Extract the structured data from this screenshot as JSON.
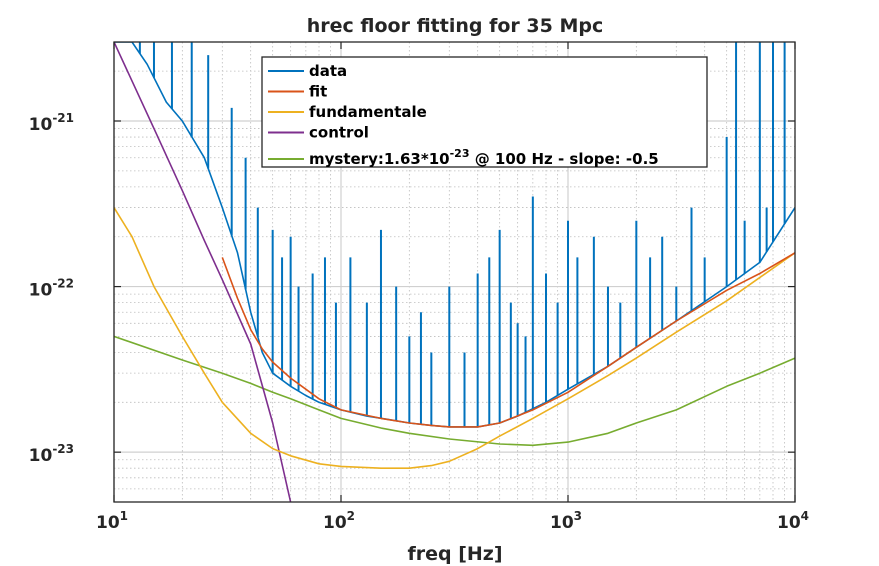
{
  "chart_data": {
    "type": "line",
    "title": "hrec floor fitting for 35 Mpc",
    "xlabel": "freq [Hz]",
    "ylabel": "",
    "x_scale": "log",
    "y_scale": "log",
    "xlim": [
      10,
      10000
    ],
    "ylim": [
      5e-24,
      3e-21
    ],
    "grid": "major and minor on",
    "legend_position": "top-center",
    "x_ticks": [
      {
        "base": "10",
        "exp": "1",
        "value": 10
      },
      {
        "base": "10",
        "exp": "2",
        "value": 100
      },
      {
        "base": "10",
        "exp": "3",
        "value": 1000
      },
      {
        "base": "10",
        "exp": "4",
        "value": 10000
      }
    ],
    "y_ticks": [
      {
        "base": "10",
        "exp": "-23",
        "value": 1e-23
      },
      {
        "base": "10",
        "exp": "-22",
        "value": 1e-22
      },
      {
        "base": "10",
        "exp": "-21",
        "value": 1e-21
      }
    ],
    "series": [
      {
        "name": "data",
        "color": "#0072BD",
        "x": [
          10,
          12,
          14,
          17,
          20,
          25,
          30,
          35,
          40,
          45,
          50,
          60,
          70,
          80,
          100,
          130,
          160,
          200,
          250,
          300,
          400,
          500,
          600,
          800,
          1000,
          1500,
          2000,
          3000,
          5000,
          7000,
          10000
        ],
        "y": [
          3e-21,
          3e-21,
          2.2e-21,
          1.3e-21,
          1e-21,
          6e-22,
          3e-22,
          1.6e-22,
          7e-23,
          4e-23,
          3e-23,
          2.5e-23,
          2.2e-23,
          2e-23,
          1.8e-23,
          1.65e-23,
          1.58e-23,
          1.5e-23,
          1.45e-23,
          1.42e-23,
          1.42e-23,
          1.5e-23,
          1.65e-23,
          2e-23,
          2.4e-23,
          3.3e-23,
          4.3e-23,
          6.2e-23,
          1e-22,
          1.4e-22,
          3e-22
        ],
        "spikes": [
          {
            "x": 13,
            "y": 3e-21
          },
          {
            "x": 15,
            "y": 3e-21
          },
          {
            "x": 18,
            "y": 3e-21
          },
          {
            "x": 22,
            "y": 3e-21
          },
          {
            "x": 26,
            "y": 2.5e-21
          },
          {
            "x": 33,
            "y": 1.2e-21
          },
          {
            "x": 38,
            "y": 6e-22
          },
          {
            "x": 43,
            "y": 3e-22
          },
          {
            "x": 50,
            "y": 2.2e-22
          },
          {
            "x": 55,
            "y": 1.5e-22
          },
          {
            "x": 60,
            "y": 2e-22
          },
          {
            "x": 65,
            "y": 1e-22
          },
          {
            "x": 75,
            "y": 1.2e-22
          },
          {
            "x": 85,
            "y": 1.5e-22
          },
          {
            "x": 95,
            "y": 8e-23
          },
          {
            "x": 110,
            "y": 1.5e-22
          },
          {
            "x": 130,
            "y": 8e-23
          },
          {
            "x": 150,
            "y": 2.2e-22
          },
          {
            "x": 175,
            "y": 1e-22
          },
          {
            "x": 200,
            "y": 5e-23
          },
          {
            "x": 225,
            "y": 7e-23
          },
          {
            "x": 250,
            "y": 4e-23
          },
          {
            "x": 300,
            "y": 1e-22
          },
          {
            "x": 350,
            "y": 4e-23
          },
          {
            "x": 400,
            "y": 1.2e-22
          },
          {
            "x": 450,
            "y": 1.5e-22
          },
          {
            "x": 500,
            "y": 2.2e-22
          },
          {
            "x": 560,
            "y": 8e-23
          },
          {
            "x": 600,
            "y": 6e-23
          },
          {
            "x": 650,
            "y": 5e-23
          },
          {
            "x": 700,
            "y": 3.5e-22
          },
          {
            "x": 800,
            "y": 1.2e-22
          },
          {
            "x": 900,
            "y": 8e-23
          },
          {
            "x": 1000,
            "y": 2.5e-22
          },
          {
            "x": 1100,
            "y": 1.5e-22
          },
          {
            "x": 1300,
            "y": 2e-22
          },
          {
            "x": 1500,
            "y": 1e-22
          },
          {
            "x": 1700,
            "y": 8e-23
          },
          {
            "x": 2000,
            "y": 2.5e-22
          },
          {
            "x": 2300,
            "y": 1.5e-22
          },
          {
            "x": 2600,
            "y": 2e-22
          },
          {
            "x": 3000,
            "y": 1e-22
          },
          {
            "x": 3500,
            "y": 3e-22
          },
          {
            "x": 4000,
            "y": 1.5e-22
          },
          {
            "x": 5000,
            "y": 8e-22
          },
          {
            "x": 5500,
            "y": 3e-21
          },
          {
            "x": 6000,
            "y": 2.5e-22
          },
          {
            "x": 7000,
            "y": 3e-21
          },
          {
            "x": 7500,
            "y": 3e-22
          },
          {
            "x": 8000,
            "y": 3e-21
          },
          {
            "x": 9000,
            "y": 3e-21
          }
        ]
      },
      {
        "name": "fit",
        "color": "#D95319",
        "x": [
          30,
          35,
          40,
          45,
          50,
          60,
          70,
          80,
          100,
          150,
          200,
          250,
          300,
          400,
          500,
          700,
          1000,
          1500,
          2000,
          3000,
          5000,
          7000,
          10000
        ],
        "y": [
          1.5e-22,
          8.5e-23,
          5.5e-23,
          4.2e-23,
          3.5e-23,
          2.8e-23,
          2.4e-23,
          2.1e-23,
          1.8e-23,
          1.6e-23,
          1.5e-23,
          1.45e-23,
          1.42e-23,
          1.42e-23,
          1.5e-23,
          1.8e-23,
          2.3e-23,
          3.3e-23,
          4.3e-23,
          6.2e-23,
          9.5e-23,
          1.2e-22,
          1.6e-22
        ]
      },
      {
        "name": "fundamentale",
        "color": "#EDB120",
        "x": [
          10,
          12,
          15,
          20,
          25,
          30,
          40,
          50,
          60,
          80,
          100,
          150,
          200,
          250,
          300,
          400,
          500,
          700,
          1000,
          1500,
          2000,
          3000,
          5000,
          10000
        ],
        "y": [
          3e-22,
          2e-22,
          1e-22,
          5e-23,
          3e-23,
          2e-23,
          1.3e-23,
          1.05e-23,
          9.5e-24,
          8.5e-24,
          8.2e-24,
          8e-24,
          8e-24,
          8.3e-24,
          8.8e-24,
          1.05e-23,
          1.25e-23,
          1.6e-23,
          2.1e-23,
          2.9e-23,
          3.7e-23,
          5.3e-23,
          8.2e-23,
          1.6e-22
        ]
      },
      {
        "name": "control",
        "color": "#7E2F8E",
        "x": [
          10,
          15,
          20,
          25,
          30,
          40,
          50,
          60
        ],
        "y": [
          3e-21,
          9e-22,
          3.8e-22,
          1.9e-22,
          1.1e-22,
          4.5e-23,
          1.5e-23,
          5e-24
        ]
      },
      {
        "name": "mystery",
        "color": "#77AC30",
        "x": [
          10,
          20,
          30,
          40,
          50,
          60,
          80,
          100,
          150,
          200,
          300,
          500,
          700,
          1000,
          1500,
          2000,
          3000,
          5000,
          7000,
          10000
        ],
        "y": [
          5e-23,
          3.6e-23,
          3e-23,
          2.6e-23,
          2.3e-23,
          2.1e-23,
          1.8e-23,
          1.6e-23,
          1.4e-23,
          1.3e-23,
          1.2e-23,
          1.12e-23,
          1.1e-23,
          1.15e-23,
          1.3e-23,
          1.5e-23,
          1.8e-23,
          2.5e-23,
          3e-23,
          3.7e-23
        ]
      }
    ],
    "legend": [
      {
        "label": "data",
        "color": "#0072BD"
      },
      {
        "label": "fit",
        "color": "#D95319"
      },
      {
        "label": "fundamentale",
        "color": "#EDB120"
      },
      {
        "label": "control",
        "color": "#7E2F8E"
      },
      {
        "label": "mystery:1.63*10",
        "sup": "-23",
        "tail": " @ 100 Hz - slope: -0.5",
        "color": "#77AC30"
      }
    ]
  }
}
